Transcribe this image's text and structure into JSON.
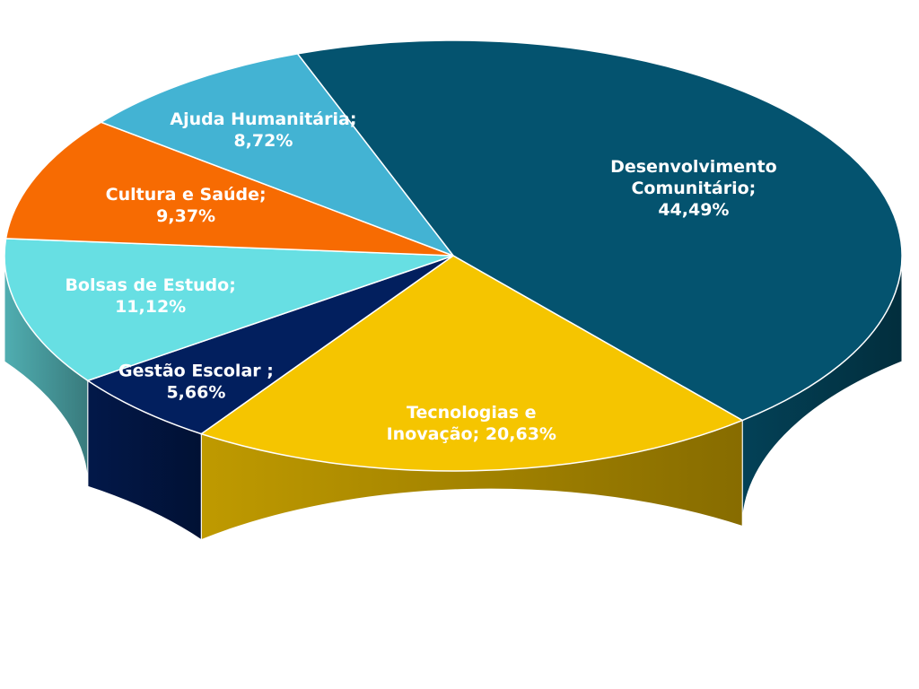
{
  "chart_data": {
    "type": "pie",
    "style": "3d",
    "legend": "none",
    "slices": [
      {
        "name": "Desenvolvimento Comunitário",
        "value": 44.49,
        "label_lines": [
          "Desenvolvimento",
          "Comunitário;",
          "44,49%"
        ],
        "color": "#04536F"
      },
      {
        "name": "Tecnologias e Inovação",
        "value": 20.63,
        "label_lines": [
          "Tecnologias e",
          "Inovação; 20,63%"
        ],
        "color": "#F5C500"
      },
      {
        "name": "Gestão Escolar",
        "value": 5.66,
        "label_lines": [
          "Gestão Escolar ;",
          "5,66%"
        ],
        "color": "#021F5E"
      },
      {
        "name": "Bolsas de Estudo",
        "value": 11.12,
        "label_lines": [
          "Bolsas de Estudo;",
          "11,12%"
        ],
        "color": "#67DFE3"
      },
      {
        "name": "Cultura e Saúde",
        "value": 9.37,
        "label_lines": [
          "Cultura e Saúde;",
          "9,37%"
        ],
        "color": "#F76B02"
      },
      {
        "name": "Ajuda Humanitária",
        "value": 8.72,
        "label_lines": [
          "Ajuda Humanitária;",
          "8,72%"
        ],
        "color": "#43B3D3"
      }
    ]
  }
}
